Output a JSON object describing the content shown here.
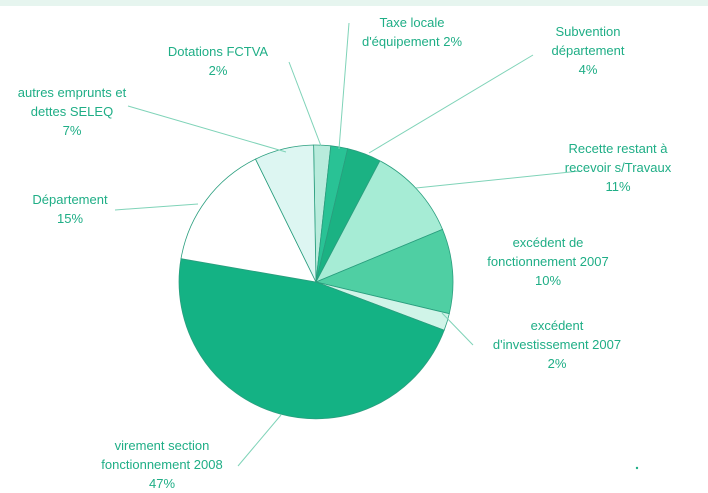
{
  "chart_data": {
    "type": "pie",
    "title": "",
    "slices": [
      {
        "label": [
          "Dotations FCTVA",
          "2%"
        ],
        "value": 2,
        "color": "#b8ebdc"
      },
      {
        "label": [
          "Taxe locale",
          "d'équipement 2%"
        ],
        "value": 2,
        "color": "#29c295"
      },
      {
        "label": [
          "Subvention",
          "département",
          "4%"
        ],
        "value": 4,
        "color": "#1bb283"
      },
      {
        "label": [
          "Recette restant à",
          "recevoir s/Travaux",
          "11%"
        ],
        "value": 11,
        "color": "#a6ecd5"
      },
      {
        "label": [
          "excédent de",
          "fonctionnement 2007",
          "10%"
        ],
        "value": 10,
        "color": "#4fcfa3"
      },
      {
        "label": [
          "excédent",
          "d'investissement 2007",
          "2%"
        ],
        "value": 2,
        "color": "#d0f4e8"
      },
      {
        "label": [
          "virement section",
          "fonctionnement 2008",
          "47%"
        ],
        "value": 47,
        "color": "#14b284"
      },
      {
        "label": [
          "Département",
          "15%"
        ],
        "value": 15,
        "color": "#ffffff"
      },
      {
        "label": [
          "autres emprunts et",
          "dettes SELEQ",
          "7%"
        ],
        "value": 7,
        "color": "#ddf6f2"
      }
    ],
    "colors": {
      "label_text": "#1fae86",
      "leader_line": "#7fd3b8",
      "slice_edge": "#2a9e7e"
    }
  }
}
